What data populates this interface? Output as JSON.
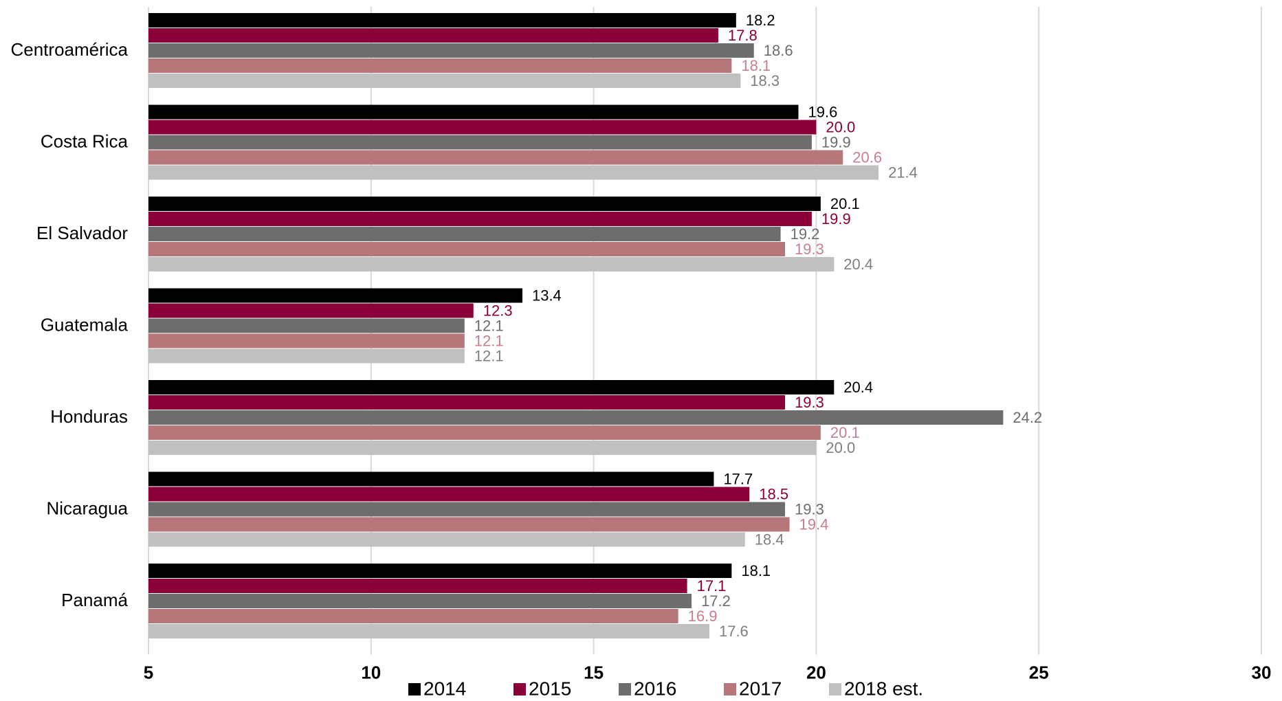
{
  "chart_data": {
    "type": "hbar",
    "categories": [
      "Centroamérica",
      "Costa Rica",
      "El Salvador",
      "Guatemala",
      "Honduras",
      "Nicaragua",
      "Panamá"
    ],
    "series": [
      {
        "name": "2014",
        "color": "#000000",
        "label_color": "#000000",
        "values": [
          18.2,
          19.6,
          20.1,
          13.4,
          20.4,
          17.7,
          18.1
        ]
      },
      {
        "name": "2015",
        "color": "#8b0038",
        "label_color": "#8b0038",
        "values": [
          17.8,
          20.0,
          19.9,
          12.3,
          19.3,
          18.5,
          17.1
        ],
        "value_labels": [
          "17.8",
          "20.0",
          "19.9",
          "12.3",
          "19.3",
          "18.5",
          "17.1"
        ]
      },
      {
        "name": "2016",
        "color": "#6d6d6d",
        "label_color": "#6d6d6d",
        "values": [
          18.6,
          19.9,
          19.2,
          12.1,
          24.2,
          19.3,
          17.2
        ]
      },
      {
        "name": "2017",
        "color": "#b5777a",
        "label_color": "#c97f8e",
        "values": [
          18.1,
          20.6,
          19.3,
          12.1,
          20.1,
          19.4,
          16.9
        ]
      },
      {
        "name": "2018 est.",
        "color": "#c0c0c0",
        "label_color": "#7f7f7f",
        "values": [
          18.3,
          21.4,
          20.4,
          12.1,
          20.0,
          18.4,
          17.6
        ],
        "value_labels": [
          "18.3",
          "21.4",
          "20.4",
          "12.1",
          "20.0",
          "18.4",
          "17.6"
        ]
      }
    ],
    "xlim": [
      5,
      30
    ],
    "xticks": [
      5,
      10,
      15,
      20,
      25,
      30
    ],
    "grid": true,
    "legend": "bottom"
  }
}
